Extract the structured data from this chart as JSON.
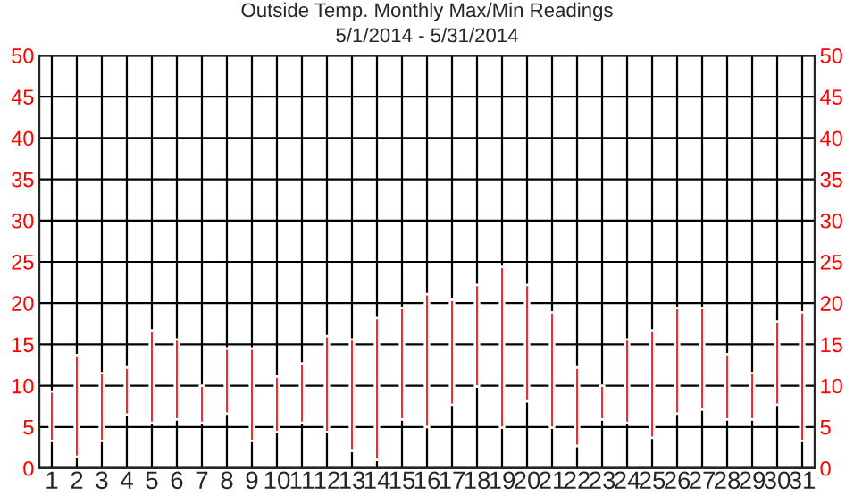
{
  "chart_data": {
    "type": "bar",
    "title": "Outside Temp. Monthly Max/Min Readings",
    "subtitle": "5/1/2014 - 5/31/2014",
    "categories": [
      "1",
      "2",
      "3",
      "4",
      "5",
      "6",
      "7",
      "8",
      "9",
      "10",
      "11",
      "12",
      "13",
      "14",
      "15",
      "16",
      "17",
      "18",
      "19",
      "20",
      "21",
      "22",
      "23",
      "24",
      "25",
      "26",
      "27",
      "28",
      "29",
      "30",
      "31"
    ],
    "base": [
      3.3,
      1.4,
      3.3,
      6.5,
      5.5,
      5.9,
      5.5,
      6.6,
      3.3,
      4.4,
      5.5,
      4.4,
      2.1,
      1.0,
      5.9,
      5.0,
      7.7,
      9.9,
      4.9,
      8.1,
      4.9,
      2.7,
      5.9,
      5.5,
      3.7,
      6.6,
      7.1,
      5.9,
      5.9,
      7.7,
      3.3
    ],
    "values": [
      6.0,
      12.3,
      8.2,
      5.7,
      11.2,
      9.7,
      4.5,
      7.9,
      11.2,
      6.7,
      7.2,
      11.6,
      13.5,
      17.2,
      13.5,
      16.1,
      12.7,
      12.3,
      19.5,
      14.1,
      14.0,
      9.5,
      4.1,
      10.1,
      13.0,
      12.8,
      12.3,
      7.9,
      5.6,
      10.1,
      15.6
    ],
    "color": "#ff0000",
    "ylim": [
      0,
      50
    ],
    "yticks": [
      0,
      5,
      10,
      15,
      20,
      25,
      30,
      35,
      40,
      45,
      50
    ],
    "y2lim": [
      0,
      50
    ],
    "y2ticks": [
      0,
      5,
      10,
      15,
      20,
      25,
      30,
      35,
      40,
      45,
      50
    ],
    "grid": true
  }
}
